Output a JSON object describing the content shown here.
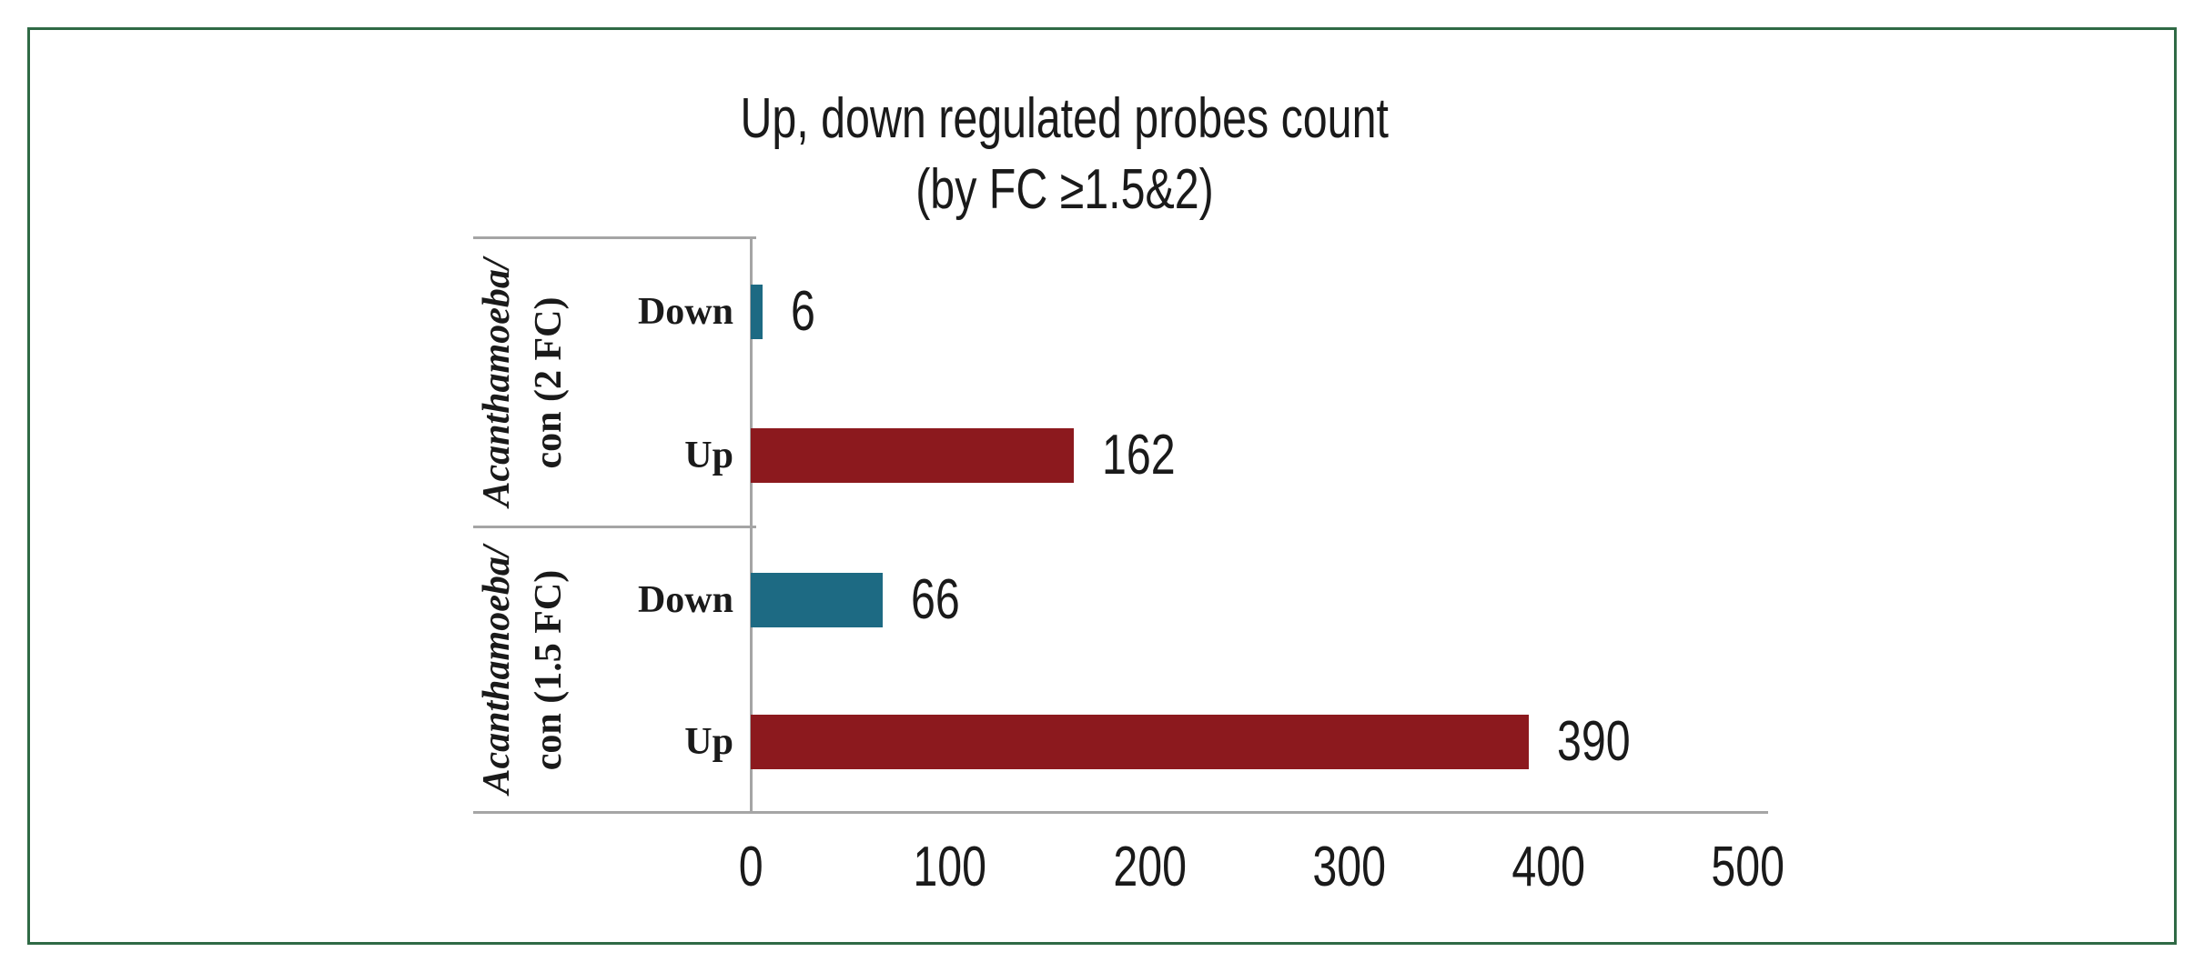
{
  "chart_data": {
    "type": "bar",
    "orientation": "horizontal",
    "title_lines": [
      "Up, down regulated probes count",
      "(by FC ≥1.5&2)"
    ],
    "groups": [
      {
        "label_lines": [
          "Acanthamoeba/",
          "con (2 FC)"
        ],
        "bars": [
          {
            "name": "Down",
            "value": 6
          },
          {
            "name": "Up",
            "value": 162
          }
        ]
      },
      {
        "label_lines": [
          "Acanthamoeba/",
          "con (1.5 FC)"
        ],
        "bars": [
          {
            "name": "Down",
            "value": 66
          },
          {
            "name": "Up",
            "value": 390
          }
        ]
      }
    ],
    "x_axis": {
      "ticks": [
        0,
        100,
        200,
        300,
        400,
        500
      ],
      "range": [
        0,
        510
      ],
      "grid": false
    },
    "bar_colors": {
      "Down": "#1d6a83",
      "Up": "#8c191e"
    },
    "frame_color": "#2f6a45",
    "axis_line_color": "#a5a5a5",
    "text_color": "#1a1a1a",
    "legend": null
  }
}
